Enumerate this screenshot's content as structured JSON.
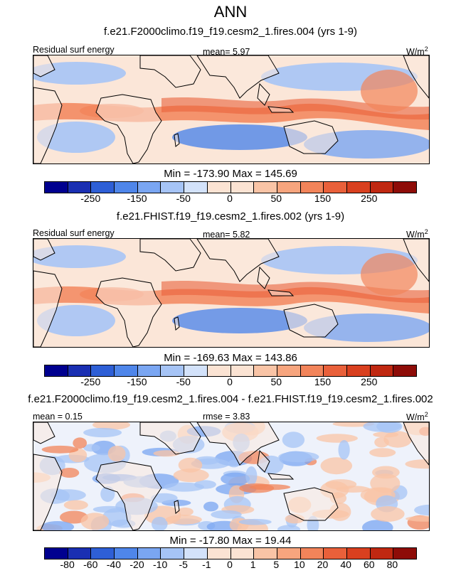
{
  "title": "ANN",
  "panels": [
    {
      "subtitle": "f.e21.F2000climo.f19_f19.cesm2_1.fires.004 (yrs 1-9)",
      "left_label": "Residual surf energy",
      "center_label": "mean=  5.97",
      "units_base": "W/m",
      "units_exp": "2",
      "stats": "Min = -173.90 Max = 145.69",
      "ticks": [
        "-250",
        "-150",
        "-50",
        "0",
        "50",
        "150",
        "250"
      ],
      "field_intensity": 1.0
    },
    {
      "subtitle": "f.e21.FHIST.f19_f19.cesm2_1.fires.002 (yrs 1-9)",
      "left_label": "Residual surf energy",
      "center_label": "mean=  5.82",
      "units_base": "W/m",
      "units_exp": "2",
      "stats": "Min = -169.63 Max = 143.86",
      "ticks": [
        "-250",
        "-150",
        "-50",
        "0",
        "50",
        "150",
        "250"
      ],
      "field_intensity": 0.98
    },
    {
      "subtitle": "f.e21.F2000climo.f19_f19.cesm2_1.fires.004 - f.e21.FHIST.f19_f19.cesm2_1.fires.002",
      "left_label": "mean =  0.15",
      "center_label": "rmse =  3.83",
      "units_base": "W/m",
      "units_exp": "2",
      "stats": "Min = -17.80 Max = 19.44",
      "ticks": [
        "-80",
        "-60",
        "-40",
        "-20",
        "-10",
        "-5",
        "-1",
        "0",
        "1",
        "5",
        "10",
        "20",
        "40",
        "60",
        "80"
      ],
      "field_intensity": 0.0
    }
  ],
  "chart_data": [
    {
      "type": "heatmap",
      "title": "ANN",
      "subtitle": "f.e21.F2000climo.f19_f19.cesm2_1.fires.004 (yrs 1-9)",
      "variable": "Residual surf energy",
      "units": "W/m2",
      "mean": 5.97,
      "min": -173.9,
      "max": 145.69,
      "colorbar_levels": [
        -250,
        -150,
        -50,
        0,
        50,
        150,
        250
      ]
    },
    {
      "type": "heatmap",
      "subtitle": "f.e21.FHIST.f19_f19.cesm2_1.fires.002 (yrs 1-9)",
      "variable": "Residual surf energy",
      "units": "W/m2",
      "mean": 5.82,
      "min": -169.63,
      "max": 143.86,
      "colorbar_levels": [
        -250,
        -150,
        -50,
        0,
        50,
        150,
        250
      ]
    },
    {
      "type": "heatmap",
      "subtitle": "f.e21.F2000climo.f19_f19.cesm2_1.fires.004 - f.e21.FHIST.f19_f19.cesm2_1.fires.002",
      "units": "W/m2",
      "mean": 0.15,
      "rmse": 3.83,
      "min": -17.8,
      "max": 19.44,
      "colorbar_levels": [
        -80,
        -60,
        -40,
        -20,
        -10,
        -5,
        -1,
        0,
        1,
        5,
        10,
        20,
        40,
        60,
        80
      ]
    }
  ],
  "colormap": [
    "#00008f",
    "#1a2fb2",
    "#2e5fd6",
    "#4f86ea",
    "#7aa6f2",
    "#a6c4f6",
    "#d3e2fa",
    "#fbe3d3",
    "#f9c4a6",
    "#f7a57e",
    "#f2845a",
    "#e9603a",
    "#d9401f",
    "#c02811",
    "#8e0c08"
  ]
}
